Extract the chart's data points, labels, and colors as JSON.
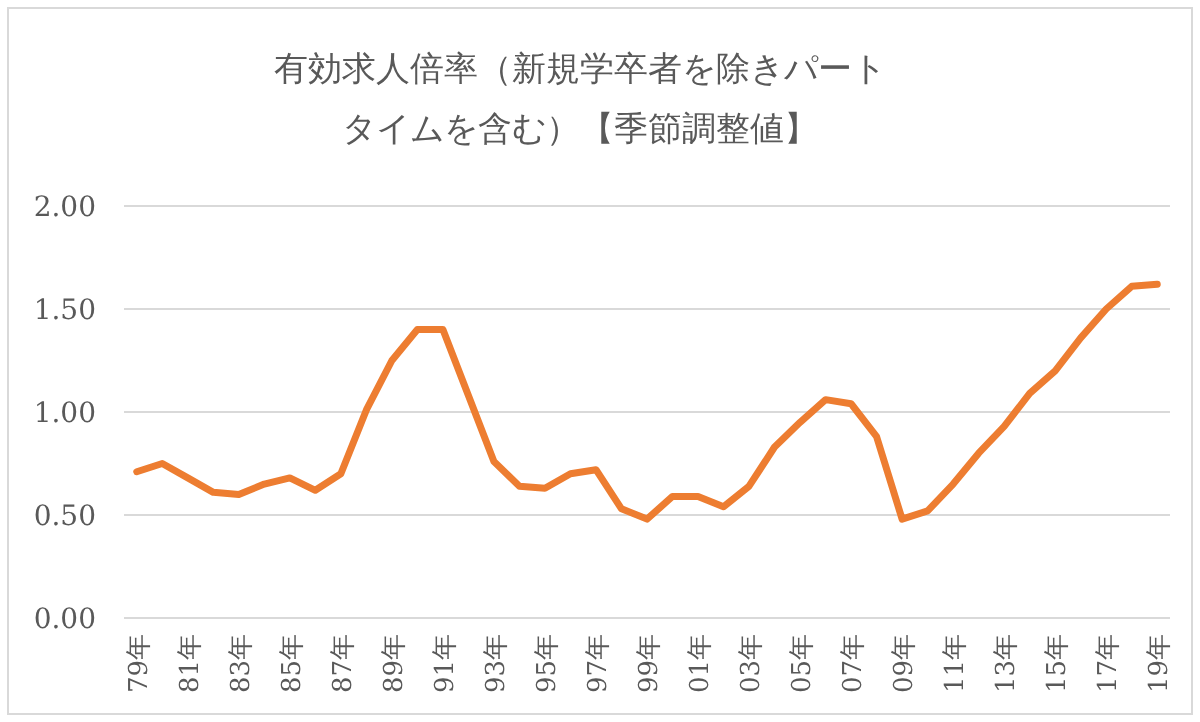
{
  "chart_data": {
    "type": "line",
    "title": "有効求人倍率（新規学卒者を除きパートタイムを含む）【季節調整値】",
    "categories": [
      "79年",
      null,
      "81年",
      null,
      "83年",
      null,
      "85年",
      null,
      "87年",
      null,
      "89年",
      null,
      "91年",
      null,
      "93年",
      null,
      "95年",
      null,
      "97年",
      null,
      "99年",
      null,
      "01年",
      null,
      "03年",
      null,
      "05年",
      null,
      "07年",
      null,
      "09年",
      null,
      "11年",
      null,
      "13年",
      null,
      "15年",
      null,
      "17年",
      null,
      "19年"
    ],
    "series": [
      {
        "color": "#ed7d31",
        "values": [
          0.71,
          0.75,
          0.68,
          0.61,
          0.6,
          0.65,
          0.68,
          0.62,
          0.7,
          1.01,
          1.25,
          1.4,
          1.4,
          1.08,
          0.76,
          0.64,
          0.63,
          0.7,
          0.72,
          0.53,
          0.48,
          0.59,
          0.59,
          0.54,
          0.64,
          0.83,
          0.95,
          1.06,
          1.04,
          0.88,
          0.48,
          0.52,
          0.65,
          0.8,
          0.93,
          1.09,
          1.2,
          1.36,
          1.5,
          1.61,
          1.62
        ]
      }
    ],
    "ylim": [
      0,
      2
    ],
    "yticks": [
      {
        "value": 0,
        "label": "0.00"
      },
      {
        "value": 0.5,
        "label": "0.50"
      },
      {
        "value": 1,
        "label": "1.00"
      },
      {
        "value": 1.5,
        "label": "1.50"
      },
      {
        "value": 2,
        "label": "2.00"
      }
    ],
    "grid": "y",
    "marker": "none",
    "line_style": "solid"
  }
}
